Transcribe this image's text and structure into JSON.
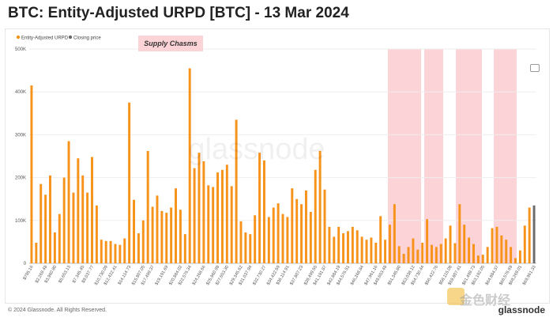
{
  "page": {
    "title": "BTC: Entity-Adjusted URPD [BTC] - 13 Mar 2024",
    "copyright": "© 2024 Glassnode. All Rights Reserved.",
    "brand": "glassnode",
    "watermark": "glassnode",
    "corner_watermark": "金色财经",
    "camera_icon": "camera-icon"
  },
  "colors": {
    "bar": "#F7931A",
    "closing": "#6b6b6b",
    "band": "#FCD3D6",
    "label_bg": "#FCD3D6",
    "grid": "#EEEEEE"
  },
  "chart_data": {
    "type": "bar",
    "title": "BTC: Entity-Adjusted URPD [BTC] - 13 Mar 2024",
    "legend": [
      {
        "name": "Entity-Adjusted URPD",
        "color": "#F7931A"
      },
      {
        "name": "Closing price",
        "color": "#6b6b6b"
      }
    ],
    "legend_position": "top-left",
    "ylim": [
      0,
      500000
    ],
    "yticks": [
      0,
      100000,
      200000,
      300000,
      400000,
      500000
    ],
    "yticklabels": [
      "0",
      "100K",
      "200K",
      "300K",
      "400K",
      "500K"
    ],
    "grid": true,
    "xticklabels": [
      "$795.16",
      "$2,269.48",
      "$3,960.80",
      "$5,653.13",
      "$7,345.45",
      "$9,037.77",
      "$10,730.09",
      "$12,422.41",
      "$14,114.73",
      "$15,807.05",
      "$17,499.37",
      "$19,191.69",
      "$20,884.02",
      "$22,576.34",
      "$24,268.66",
      "$25,960.98",
      "$27,653.30",
      "$29,345.62",
      "$31,037.94",
      "$32,730.27",
      "$34,422.59",
      "$36,114.91",
      "$37,807.23",
      "$39,499.55",
      "$41,191.87",
      "$42,884.19",
      "$44,576.51",
      "$46,268.84",
      "$47,961.16",
      "$49,653.48",
      "$51,345.80",
      "$53,038.12",
      "$54,730.44",
      "$56,422.76",
      "$58,115.08",
      "$59,807.41",
      "$61,499.73",
      "$63,192.05",
      "$64,884.37",
      "$66,576.69",
      "$68,269.01",
      "$69,961.33"
    ],
    "values": [
      415000,
      48000,
      185000,
      160000,
      205000,
      72000,
      115000,
      200000,
      285000,
      165000,
      245000,
      205000,
      165000,
      248000,
      135000,
      55000,
      52000,
      52000,
      45000,
      43000,
      58000,
      375000,
      148000,
      70000,
      100000,
      262000,
      132000,
      158000,
      122000,
      118000,
      130000,
      175000,
      125000,
      68000,
      455000,
      222000,
      258000,
      238000,
      182000,
      178000,
      212000,
      218000,
      230000,
      180000,
      335000,
      98000,
      72000,
      68000,
      112000,
      258000,
      240000,
      108000,
      130000,
      140000,
      115000,
      108000,
      175000,
      150000,
      138000,
      170000,
      120000,
      218000,
      262000,
      172000,
      85000,
      62000,
      85000,
      70000,
      75000,
      85000,
      77000,
      62000,
      55000,
      60000,
      48000,
      110000,
      55000,
      90000,
      138000,
      40000,
      22000,
      38000,
      58000,
      32000,
      48000,
      103000,
      43000,
      38000,
      45000,
      58000,
      88000,
      47000,
      138000,
      90000,
      60000,
      45000,
      18000,
      20000,
      38000,
      82000,
      85000,
      65000,
      55000,
      38000,
      12000,
      30000,
      88000,
      130000
    ],
    "closing_price_value": 135000,
    "annotations": [
      {
        "text": "Supply Chasms"
      }
    ]
  }
}
